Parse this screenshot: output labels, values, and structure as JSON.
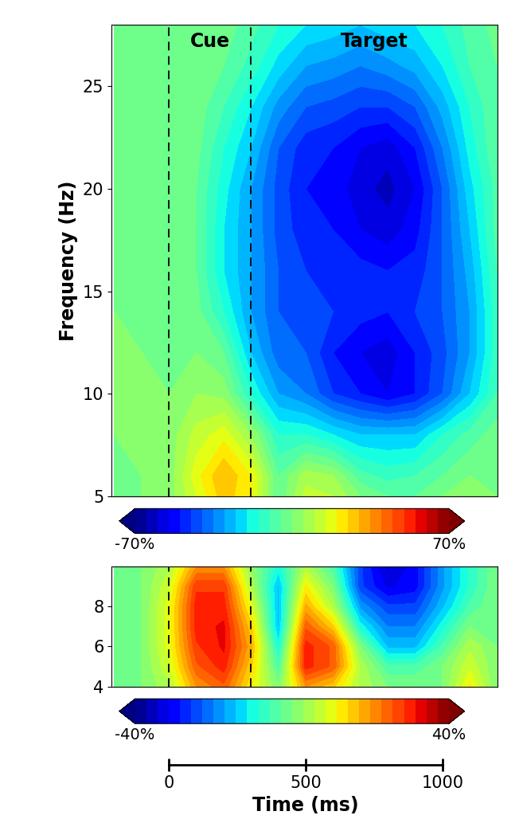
{
  "chart_data": [
    {
      "type": "heatmap",
      "x": [
        -200,
        -100,
        0,
        100,
        200,
        300,
        400,
        500,
        600,
        700,
        800,
        900,
        1000,
        1100,
        1200
      ],
      "y": [
        5,
        6,
        8,
        10,
        12,
        14,
        16,
        18,
        20,
        22,
        24,
        26,
        28
      ],
      "cells": [
        [
          0,
          0,
          2,
          15,
          28,
          20,
          -5,
          12,
          10,
          0,
          -5,
          -5,
          0,
          2,
          0
        ],
        [
          0,
          0,
          2,
          18,
          30,
          20,
          -5,
          8,
          5,
          -8,
          -12,
          -10,
          -5,
          0,
          0
        ],
        [
          0,
          2,
          2,
          12,
          18,
          5,
          -15,
          -15,
          -20,
          -25,
          -25,
          -25,
          -15,
          -8,
          -2
        ],
        [
          0,
          2,
          0,
          5,
          3,
          -15,
          -30,
          -35,
          -45,
          -50,
          -55,
          -50,
          -40,
          -25,
          -10
        ],
        [
          2,
          0,
          0,
          0,
          -5,
          -25,
          -38,
          -40,
          -50,
          -55,
          -58,
          -50,
          -42,
          -30,
          -12
        ],
        [
          0,
          0,
          0,
          -3,
          -15,
          -30,
          -40,
          -42,
          -45,
          -48,
          -50,
          -45,
          -40,
          -30,
          -12
        ],
        [
          0,
          0,
          0,
          -5,
          -20,
          -30,
          -40,
          -45,
          -45,
          -48,
          -50,
          -48,
          -40,
          -28,
          -10
        ],
        [
          0,
          0,
          0,
          -5,
          -20,
          -30,
          -42,
          -48,
          -50,
          -55,
          -58,
          -52,
          -40,
          -25,
          -8
        ],
        [
          0,
          0,
          0,
          -5,
          -18,
          -30,
          -42,
          -50,
          -52,
          -58,
          -62,
          -55,
          -40,
          -22,
          -8
        ],
        [
          0,
          0,
          0,
          -3,
          -15,
          -25,
          -40,
          -48,
          -50,
          -55,
          -58,
          -50,
          -35,
          -18,
          -5
        ],
        [
          0,
          0,
          0,
          -2,
          -10,
          -20,
          -32,
          -40,
          -42,
          -45,
          -45,
          -40,
          -28,
          -15,
          -5
        ],
        [
          0,
          0,
          0,
          0,
          -5,
          -12,
          -22,
          -30,
          -32,
          -35,
          -32,
          -28,
          -20,
          -10,
          -5
        ],
        [
          0,
          0,
          0,
          0,
          -2,
          -8,
          -15,
          -20,
          -22,
          -25,
          -22,
          -20,
          -15,
          -8,
          -3
        ]
      ],
      "xlim": [
        -210,
        1200
      ],
      "ylim": [
        5,
        28
      ],
      "yticks": [
        5,
        10,
        15,
        20,
        25
      ],
      "ylabel": "Frequency (Hz)",
      "tick_labels": "y",
      "colorbar": {
        "range": [
          -70,
          70
        ],
        "ticks": [
          {
            "value": -70,
            "label": "-70%"
          },
          {
            "value": 70,
            "label": "70%"
          }
        ]
      },
      "dashed_lines": [
        0,
        300
      ],
      "annotations": [
        "Cue",
        "Target"
      ]
    },
    {
      "type": "heatmap",
      "x": [
        -200,
        -100,
        0,
        100,
        200,
        300,
        400,
        500,
        600,
        700,
        800,
        900,
        1000,
        1100,
        1200
      ],
      "y": [
        4,
        5,
        6,
        7,
        8,
        9,
        10
      ],
      "cells": [
        [
          0,
          0,
          5,
          20,
          25,
          12,
          0,
          20,
          15,
          5,
          0,
          0,
          0,
          12,
          0
        ],
        [
          0,
          0,
          8,
          25,
          30,
          15,
          -5,
          30,
          25,
          5,
          -5,
          -5,
          0,
          8,
          0
        ],
        [
          0,
          0,
          10,
          28,
          32,
          18,
          -10,
          30,
          25,
          0,
          -15,
          -15,
          -5,
          5,
          0
        ],
        [
          0,
          0,
          10,
          30,
          32,
          15,
          -15,
          25,
          15,
          -10,
          -20,
          -20,
          -10,
          0,
          0
        ],
        [
          0,
          0,
          10,
          30,
          30,
          10,
          -15,
          18,
          5,
          -18,
          -25,
          -25,
          -15,
          -5,
          0
        ],
        [
          0,
          0,
          8,
          28,
          28,
          5,
          -15,
          12,
          0,
          -25,
          -32,
          -30,
          -18,
          -8,
          0
        ],
        [
          0,
          0,
          5,
          20,
          20,
          2,
          -10,
          5,
          -5,
          -25,
          -35,
          -30,
          -18,
          -8,
          0
        ]
      ],
      "xlim": [
        -210,
        1200
      ],
      "ylim": [
        4,
        10
      ],
      "yticks": [
        4,
        6,
        8
      ],
      "tick_labels": "y",
      "colorbar": {
        "range": [
          -40,
          40
        ],
        "ticks": [
          {
            "value": -40,
            "label": "-40%"
          },
          {
            "value": 40,
            "label": "40%"
          }
        ]
      },
      "dashed_lines": [
        0,
        300
      ]
    }
  ],
  "time_axis": {
    "xlim": [
      0,
      1000
    ],
    "xticks": [
      0,
      500,
      1000
    ],
    "xlabel": "Time (ms)"
  }
}
